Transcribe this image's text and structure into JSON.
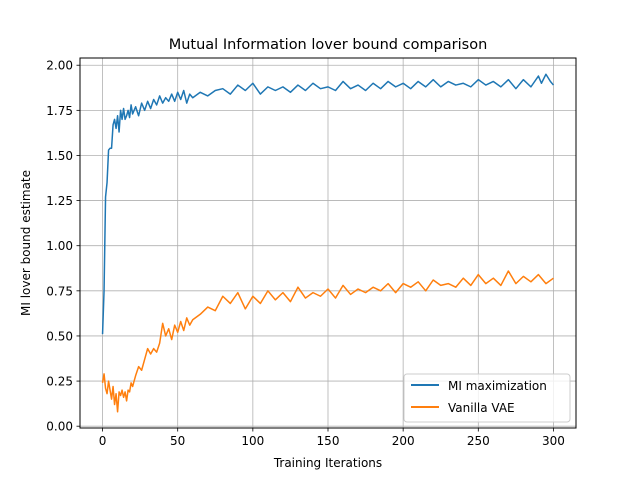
{
  "chart_data": {
    "type": "line",
    "title": "Mutual Information lover bound comparison",
    "xlabel": "Training Iterations",
    "ylabel": "MI lover bound estimate",
    "xlim": [
      -15,
      315
    ],
    "ylim": [
      -0.01,
      2.04
    ],
    "xticks": [
      0,
      50,
      100,
      150,
      200,
      250,
      300
    ],
    "xtick_labels": [
      "0",
      "50",
      "100",
      "150",
      "200",
      "250",
      "300"
    ],
    "yticks": [
      0.0,
      0.25,
      0.5,
      0.75,
      1.0,
      1.25,
      1.5,
      1.75,
      2.0
    ],
    "ytick_labels": [
      "0.00",
      "0.25",
      "0.50",
      "0.75",
      "1.00",
      "1.25",
      "1.50",
      "1.75",
      "2.00"
    ],
    "grid": true,
    "legend_position": "lower-right",
    "series": [
      {
        "name": "MI maximization",
        "color": "#1f77b4",
        "x": [
          0,
          1,
          2,
          3,
          4,
          5,
          6,
          7,
          8,
          9,
          10,
          11,
          12,
          13,
          14,
          15,
          16,
          17,
          18,
          19,
          20,
          22,
          24,
          26,
          28,
          30,
          32,
          34,
          36,
          38,
          40,
          42,
          44,
          46,
          48,
          50,
          52,
          54,
          56,
          58,
          60,
          65,
          70,
          75,
          80,
          85,
          90,
          95,
          100,
          105,
          110,
          115,
          120,
          125,
          130,
          135,
          140,
          145,
          150,
          155,
          160,
          165,
          170,
          175,
          180,
          185,
          190,
          195,
          200,
          205,
          210,
          215,
          220,
          225,
          230,
          235,
          240,
          245,
          250,
          255,
          260,
          265,
          270,
          275,
          280,
          285,
          290,
          292,
          295,
          298,
          300
        ],
        "y": [
          0.51,
          0.75,
          1.27,
          1.35,
          1.53,
          1.54,
          1.54,
          1.67,
          1.7,
          1.65,
          1.72,
          1.63,
          1.75,
          1.7,
          1.76,
          1.7,
          1.72,
          1.75,
          1.71,
          1.78,
          1.73,
          1.77,
          1.72,
          1.79,
          1.75,
          1.8,
          1.76,
          1.81,
          1.78,
          1.83,
          1.79,
          1.82,
          1.8,
          1.84,
          1.8,
          1.85,
          1.81,
          1.86,
          1.79,
          1.84,
          1.82,
          1.85,
          1.83,
          1.86,
          1.87,
          1.84,
          1.89,
          1.86,
          1.9,
          1.84,
          1.88,
          1.86,
          1.88,
          1.85,
          1.89,
          1.86,
          1.9,
          1.87,
          1.88,
          1.86,
          1.91,
          1.87,
          1.89,
          1.86,
          1.9,
          1.87,
          1.91,
          1.88,
          1.9,
          1.87,
          1.91,
          1.88,
          1.92,
          1.88,
          1.91,
          1.89,
          1.9,
          1.88,
          1.92,
          1.89,
          1.91,
          1.88,
          1.92,
          1.87,
          1.92,
          1.88,
          1.94,
          1.9,
          1.95,
          1.91,
          1.89
        ]
      },
      {
        "name": "Vanilla VAE",
        "color": "#ff7f0e",
        "x": [
          0,
          1,
          2,
          3,
          4,
          5,
          6,
          7,
          8,
          9,
          10,
          11,
          12,
          13,
          14,
          15,
          16,
          17,
          18,
          19,
          20,
          22,
          24,
          26,
          28,
          30,
          32,
          34,
          36,
          38,
          40,
          42,
          44,
          46,
          48,
          50,
          52,
          54,
          56,
          58,
          60,
          65,
          70,
          75,
          80,
          85,
          90,
          95,
          100,
          105,
          110,
          115,
          120,
          125,
          130,
          135,
          140,
          145,
          150,
          155,
          160,
          165,
          170,
          175,
          180,
          185,
          190,
          195,
          200,
          205,
          210,
          215,
          220,
          225,
          230,
          235,
          240,
          245,
          250,
          255,
          260,
          265,
          270,
          275,
          280,
          285,
          290,
          295,
          300
        ],
        "y": [
          0.24,
          0.29,
          0.21,
          0.18,
          0.25,
          0.2,
          0.15,
          0.22,
          0.12,
          0.18,
          0.08,
          0.19,
          0.17,
          0.2,
          0.16,
          0.19,
          0.14,
          0.2,
          0.19,
          0.24,
          0.22,
          0.28,
          0.33,
          0.31,
          0.37,
          0.43,
          0.4,
          0.43,
          0.41,
          0.46,
          0.57,
          0.5,
          0.54,
          0.48,
          0.56,
          0.52,
          0.58,
          0.53,
          0.6,
          0.56,
          0.59,
          0.62,
          0.66,
          0.64,
          0.72,
          0.68,
          0.74,
          0.65,
          0.72,
          0.68,
          0.75,
          0.7,
          0.74,
          0.69,
          0.77,
          0.71,
          0.74,
          0.72,
          0.76,
          0.71,
          0.78,
          0.73,
          0.76,
          0.74,
          0.77,
          0.75,
          0.79,
          0.74,
          0.79,
          0.77,
          0.8,
          0.75,
          0.81,
          0.78,
          0.79,
          0.77,
          0.82,
          0.78,
          0.84,
          0.79,
          0.82,
          0.78,
          0.86,
          0.79,
          0.83,
          0.8,
          0.84,
          0.79,
          0.82
        ]
      }
    ]
  }
}
